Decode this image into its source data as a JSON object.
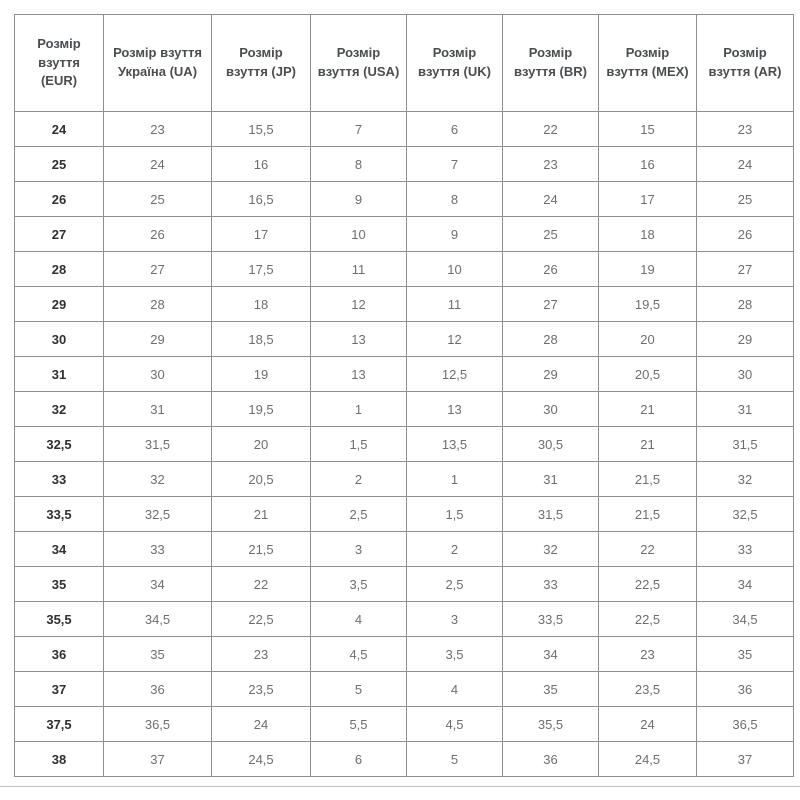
{
  "colors": {
    "table_border": "#8f8f8f",
    "header_text": "#4a4d50",
    "cell_text": "#6e6e6e",
    "first_column_text": "#303030",
    "background": "#ffffff",
    "bottom_divider": "#c4c4c4"
  },
  "chart_data": {
    "type": "table",
    "title": "",
    "columns": [
      "Розмір взуття (EUR)",
      "Розмір взуття Україна (UA)",
      "Розмір взуття (JP)",
      "Розмір взуття (USA)",
      "Розмір взуття (UK)",
      "Розмір взуття (BR)",
      "Розмір взуття (MEX)",
      "Розмір взуття (AR)"
    ],
    "rows": [
      [
        "24",
        "23",
        "15,5",
        "7",
        "6",
        "22",
        "15",
        "23"
      ],
      [
        "25",
        "24",
        "16",
        "8",
        "7",
        "23",
        "16",
        "24"
      ],
      [
        "26",
        "25",
        "16,5",
        "9",
        "8",
        "24",
        "17",
        "25"
      ],
      [
        "27",
        "26",
        "17",
        "10",
        "9",
        "25",
        "18",
        "26"
      ],
      [
        "28",
        "27",
        "17,5",
        "11",
        "10",
        "26",
        "19",
        "27"
      ],
      [
        "29",
        "28",
        "18",
        "12",
        "11",
        "27",
        "19,5",
        "28"
      ],
      [
        "30",
        "29",
        "18,5",
        "13",
        "12",
        "28",
        "20",
        "29"
      ],
      [
        "31",
        "30",
        "19",
        "13",
        "12,5",
        "29",
        "20,5",
        "30"
      ],
      [
        "32",
        "31",
        "19,5",
        "1",
        "13",
        "30",
        "21",
        "31"
      ],
      [
        "32,5",
        "31,5",
        "20",
        "1,5",
        "13,5",
        "30,5",
        "21",
        "31,5"
      ],
      [
        "33",
        "32",
        "20,5",
        "2",
        "1",
        "31",
        "21,5",
        "32"
      ],
      [
        "33,5",
        "32,5",
        "21",
        "2,5",
        "1,5",
        "31,5",
        "21,5",
        "32,5"
      ],
      [
        "34",
        "33",
        "21,5",
        "3",
        "2",
        "32",
        "22",
        "33"
      ],
      [
        "35",
        "34",
        "22",
        "3,5",
        "2,5",
        "33",
        "22,5",
        "34"
      ],
      [
        "35,5",
        "34,5",
        "22,5",
        "4",
        "3",
        "33,5",
        "22,5",
        "34,5"
      ],
      [
        "36",
        "35",
        "23",
        "4,5",
        "3,5",
        "34",
        "23",
        "35"
      ],
      [
        "37",
        "36",
        "23,5",
        "5",
        "4",
        "35",
        "23,5",
        "36"
      ],
      [
        "37,5",
        "36,5",
        "24",
        "5,5",
        "4,5",
        "35,5",
        "24",
        "36,5"
      ],
      [
        "38",
        "37",
        "24,5",
        "6",
        "5",
        "36",
        "24,5",
        "37"
      ]
    ]
  }
}
